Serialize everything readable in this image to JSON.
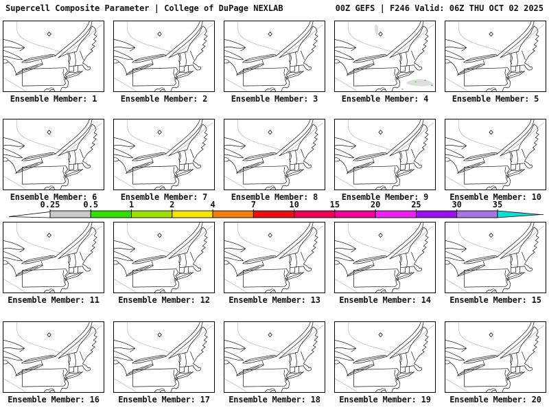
{
  "header": {
    "left": "Supercell Composite Parameter | College of DuPage NEXLAB",
    "right": "00Z GEFS | F246 Valid: 06Z THU OCT 02 2025"
  },
  "colorbar": {
    "ticks": [
      "0.25",
      "0.5",
      "1",
      "2",
      "4",
      "7",
      "10",
      "15",
      "20",
      "25",
      "30",
      "35"
    ],
    "segment_colors": [
      "#c8c8c8",
      "#33dd00",
      "#a0e000",
      "#f7e400",
      "#f08010",
      "#e81010",
      "#ee0055",
      "#ee0099",
      "#ee22ee",
      "#9911ee",
      "#a775e0"
    ],
    "under_arrow_color": "#ffffff",
    "over_arrow_color": "#11ddd5"
  },
  "map_fill": {
    "gray": "#d9d9d9",
    "green": "#44cc22"
  },
  "map_colors": {
    "coast_line": "#111111",
    "boundary_line": "#aaaaaa"
  },
  "panels": [
    {
      "label": "Ensemble Member: 1",
      "has_fill": false
    },
    {
      "label": "Ensemble Member: 2",
      "has_fill": false
    },
    {
      "label": "Ensemble Member: 3",
      "has_fill": false
    },
    {
      "label": "Ensemble Member: 4",
      "has_fill": true
    },
    {
      "label": "Ensemble Member: 5",
      "has_fill": false
    },
    {
      "label": "Ensemble Member: 6",
      "has_fill": false
    },
    {
      "label": "Ensemble Member: 7",
      "has_fill": false
    },
    {
      "label": "Ensemble Member: 8",
      "has_fill": false
    },
    {
      "label": "Ensemble Member: 9",
      "has_fill": false
    },
    {
      "label": "Ensemble Member: 10",
      "has_fill": false
    },
    {
      "label": "Ensemble Member: 11",
      "has_fill": false
    },
    {
      "label": "Ensemble Member: 12",
      "has_fill": false
    },
    {
      "label": "Ensemble Member: 13",
      "has_fill": false
    },
    {
      "label": "Ensemble Member: 14",
      "has_fill": false
    },
    {
      "label": "Ensemble Member: 15",
      "has_fill": false
    },
    {
      "label": "Ensemble Member: 16",
      "has_fill": false
    },
    {
      "label": "Ensemble Member: 17",
      "has_fill": false
    },
    {
      "label": "Ensemble Member: 18",
      "has_fill": false
    },
    {
      "label": "Ensemble Member: 19",
      "has_fill": false
    },
    {
      "label": "Ensemble Member: 20",
      "has_fill": false
    }
  ]
}
